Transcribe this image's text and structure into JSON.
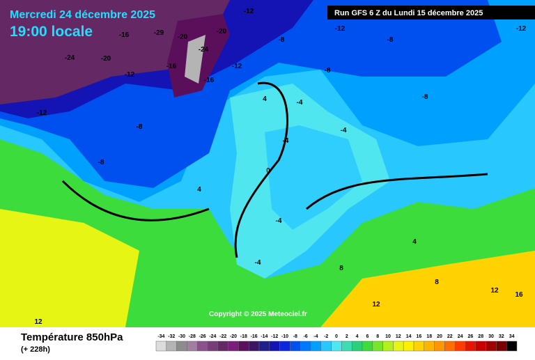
{
  "header": {
    "title": "Mercredi 24 décembre 2025",
    "time": "19:00 locale",
    "run": "Run GFS 6 Z du Lundi 15 décembre 2025"
  },
  "copyright": "Copyright © 2025 Meteociel.fr",
  "footer": {
    "variable": "Température 850hPa",
    "lead": "(+ 228h)"
  },
  "scale": {
    "values": [
      -34,
      -32,
      -30,
      -28,
      -26,
      -24,
      -22,
      -20,
      -18,
      -16,
      -14,
      -12,
      -10,
      -8,
      -6,
      -4,
      -2,
      0,
      2,
      4,
      6,
      8,
      10,
      12,
      14,
      16,
      18,
      20,
      22,
      24,
      26,
      28,
      30,
      32,
      34
    ],
    "colors": [
      "#dcdcdc",
      "#b4b4b4",
      "#8c8c8c",
      "#a080a0",
      "#8c508c",
      "#783c78",
      "#642864",
      "#7a1e7a",
      "#5a0f5a",
      "#3c1464",
      "#1e1e8c",
      "#1414b4",
      "#0a28dc",
      "#0050f0",
      "#0078ff",
      "#00a0ff",
      "#28c8ff",
      "#50e6f0",
      "#3cdcb4",
      "#28d278",
      "#3cdc3c",
      "#78e628",
      "#b4f01e",
      "#e6f514",
      "#fff000",
      "#ffd200",
      "#ffb400",
      "#ff9600",
      "#ff6e00",
      "#ff3c00",
      "#e61400",
      "#c80000",
      "#a00000",
      "#780000",
      "#000000"
    ]
  },
  "map_labels": [
    -24,
    -12,
    -16,
    -20,
    -29,
    -20,
    -16,
    -12,
    -24,
    -20,
    -12,
    -8,
    -12,
    -8,
    -16,
    -12,
    -8,
    -8,
    -4,
    -4,
    -8,
    -4,
    0,
    4,
    -4,
    -4,
    4,
    8,
    8,
    12,
    12,
    4,
    -8,
    -12,
    16,
    12
  ]
}
